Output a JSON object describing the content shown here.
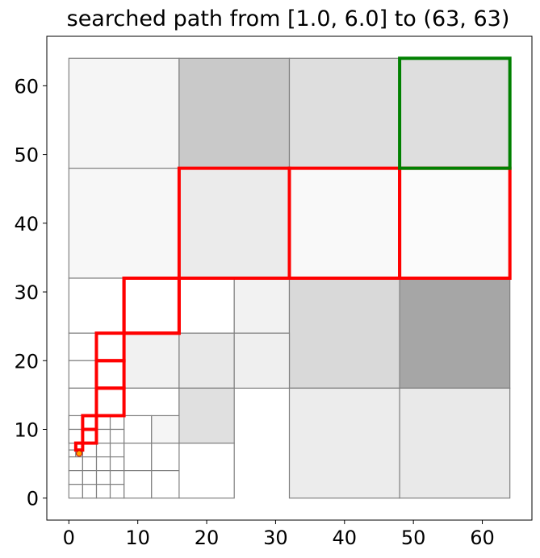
{
  "chart_data": {
    "type": "quadtree-path",
    "title": "searched path from [1.0, 6.0] to (63, 63)",
    "xlim": [
      -3.2,
      67.2
    ],
    "ylim": [
      -3.2,
      67.2
    ],
    "x_ticks": [
      0,
      10,
      20,
      30,
      40,
      50,
      60
    ],
    "y_ticks": [
      0,
      10,
      20,
      30,
      40,
      50,
      60
    ],
    "grid": false,
    "start_point": {
      "x": 1.5,
      "y": 6.5
    },
    "cells": [
      {
        "x0": 0,
        "y0": 48,
        "x1": 16,
        "y1": 64,
        "shade": "#f5f5f5"
      },
      {
        "x0": 16,
        "y0": 48,
        "x1": 32,
        "y1": 64,
        "shade": "#c9c9c9"
      },
      {
        "x0": 32,
        "y0": 48,
        "x1": 48,
        "y1": 64,
        "shade": "#dedede"
      },
      {
        "x0": 48,
        "y0": 48,
        "x1": 64,
        "y1": 64,
        "shade": "#dedede"
      },
      {
        "x0": 0,
        "y0": 32,
        "x1": 16,
        "y1": 48,
        "shade": "#f7f7f7"
      },
      {
        "x0": 16,
        "y0": 32,
        "x1": 32,
        "y1": 48,
        "shade": "#ebebeb"
      },
      {
        "x0": 32,
        "y0": 32,
        "x1": 48,
        "y1": 48,
        "shade": "#f9f9f9"
      },
      {
        "x0": 48,
        "y0": 32,
        "x1": 64,
        "y1": 48,
        "shade": "#fbfbfb"
      },
      {
        "x0": 0,
        "y0": 24,
        "x1": 8,
        "y1": 32,
        "shade": "#ffffff"
      },
      {
        "x0": 8,
        "y0": 24,
        "x1": 16,
        "y1": 32,
        "shade": "#ffffff"
      },
      {
        "x0": 16,
        "y0": 24,
        "x1": 24,
        "y1": 32,
        "shade": "#ffffff"
      },
      {
        "x0": 24,
        "y0": 24,
        "x1": 32,
        "y1": 32,
        "shade": "#f2f2f2"
      },
      {
        "x0": 32,
        "y0": 16,
        "x1": 48,
        "y1": 32,
        "shade": "#d9d9d9"
      },
      {
        "x0": 48,
        "y0": 16,
        "x1": 64,
        "y1": 32,
        "shade": "#a6a6a6"
      },
      {
        "x0": 0,
        "y0": 20,
        "x1": 4,
        "y1": 24,
        "shade": "#ffffff"
      },
      {
        "x0": 4,
        "y0": 20,
        "x1": 8,
        "y1": 24,
        "shade": "#ffffff"
      },
      {
        "x0": 0,
        "y0": 16,
        "x1": 4,
        "y1": 20,
        "shade": "#ffffff"
      },
      {
        "x0": 4,
        "y0": 16,
        "x1": 8,
        "y1": 20,
        "shade": "#ffffff"
      },
      {
        "x0": 8,
        "y0": 16,
        "x1": 16,
        "y1": 24,
        "shade": "#f1f1f1"
      },
      {
        "x0": 16,
        "y0": 16,
        "x1": 24,
        "y1": 24,
        "shade": "#e8e8e8"
      },
      {
        "x0": 24,
        "y0": 16,
        "x1": 32,
        "y1": 24,
        "shade": "#efefef"
      },
      {
        "x0": 0,
        "y0": 8,
        "x1": 8,
        "y1": 16,
        "shade": "#ffffff"
      },
      {
        "x0": 8,
        "y0": 8,
        "x1": 16,
        "y1": 16,
        "shade": "#ffffff"
      },
      {
        "x0": 16,
        "y0": 8,
        "x1": 24,
        "y1": 16,
        "shade": "#e0e0e0"
      },
      {
        "x0": 16,
        "y0": 0,
        "x1": 24,
        "y1": 8,
        "shade": "#ffffff"
      },
      {
        "x0": 32,
        "y0": 0,
        "x1": 48,
        "y1": 16,
        "shade": "#ececec"
      },
      {
        "x0": 48,
        "y0": 0,
        "x1": 64,
        "y1": 16,
        "shade": "#e9e9e9"
      },
      {
        "x0": 8,
        "y0": 8,
        "x1": 12,
        "y1": 12,
        "shade": "#ffffff"
      },
      {
        "x0": 12,
        "y0": 8,
        "x1": 16,
        "y1": 12,
        "shade": "#f5f5f5"
      },
      {
        "x0": 8,
        "y0": 4,
        "x1": 12,
        "y1": 8,
        "shade": "#ffffff"
      },
      {
        "x0": 12,
        "y0": 4,
        "x1": 16,
        "y1": 8,
        "shade": "#ffffff"
      },
      {
        "x0": 8,
        "y0": 0,
        "x1": 12,
        "y1": 4,
        "shade": "#ffffff"
      },
      {
        "x0": 12,
        "y0": 0,
        "x1": 16,
        "y1": 4,
        "shade": "#ffffff"
      },
      {
        "x0": 4,
        "y0": 10,
        "x1": 6,
        "y1": 12,
        "shade": "#ffffff"
      },
      {
        "x0": 6,
        "y0": 10,
        "x1": 8,
        "y1": 12,
        "shade": "#ffffff"
      },
      {
        "x0": 4,
        "y0": 8,
        "x1": 6,
        "y1": 10,
        "shade": "#ffffff"
      },
      {
        "x0": 6,
        "y0": 8,
        "x1": 8,
        "y1": 10,
        "shade": "#ffffff"
      },
      {
        "x0": 4,
        "y0": 6,
        "x1": 6,
        "y1": 8,
        "shade": "#ffffff"
      },
      {
        "x0": 6,
        "y0": 6,
        "x1": 8,
        "y1": 8,
        "shade": "#ffffff"
      },
      {
        "x0": 4,
        "y0": 4,
        "x1": 6,
        "y1": 6,
        "shade": "#ffffff"
      },
      {
        "x0": 6,
        "y0": 4,
        "x1": 8,
        "y1": 6,
        "shade": "#ffffff"
      },
      {
        "x0": 4,
        "y0": 2,
        "x1": 6,
        "y1": 4,
        "shade": "#ffffff"
      },
      {
        "x0": 6,
        "y0": 2,
        "x1": 8,
        "y1": 4,
        "shade": "#ffffff"
      },
      {
        "x0": 4,
        "y0": 0,
        "x1": 6,
        "y1": 2,
        "shade": "#ffffff"
      },
      {
        "x0": 6,
        "y0": 0,
        "x1": 8,
        "y1": 2,
        "shade": "#ffffff"
      },
      {
        "x0": 0,
        "y0": 10,
        "x1": 2,
        "y1": 12,
        "shade": "#ffffff"
      },
      {
        "x0": 2,
        "y0": 10,
        "x1": 4,
        "y1": 12,
        "shade": "#ffffff"
      },
      {
        "x0": 0,
        "y0": 8,
        "x1": 2,
        "y1": 10,
        "shade": "#ffffff"
      },
      {
        "x0": 2,
        "y0": 8,
        "x1": 4,
        "y1": 10,
        "shade": "#ffffff"
      },
      {
        "x0": 0,
        "y0": 7,
        "x1": 1,
        "y1": 8,
        "shade": "#ffffff"
      },
      {
        "x0": 1,
        "y0": 7,
        "x1": 2,
        "y1": 8,
        "shade": "#ffffff"
      },
      {
        "x0": 0,
        "y0": 6,
        "x1": 1,
        "y1": 7,
        "shade": "#ffffff"
      },
      {
        "x0": 1,
        "y0": 6,
        "x1": 2,
        "y1": 7,
        "shade": "#ffffff"
      },
      {
        "x0": 2,
        "y0": 6,
        "x1": 4,
        "y1": 8,
        "shade": "#ffffff"
      },
      {
        "x0": 0,
        "y0": 4,
        "x1": 2,
        "y1": 6,
        "shade": "#ffffff"
      },
      {
        "x0": 2,
        "y0": 4,
        "x1": 4,
        "y1": 6,
        "shade": "#ffffff"
      },
      {
        "x0": 0,
        "y0": 2,
        "x1": 2,
        "y1": 4,
        "shade": "#ffffff"
      },
      {
        "x0": 2,
        "y0": 2,
        "x1": 4,
        "y1": 4,
        "shade": "#ffffff"
      },
      {
        "x0": 0,
        "y0": 0,
        "x1": 2,
        "y1": 2,
        "shade": "#ffffff"
      },
      {
        "x0": 2,
        "y0": 0,
        "x1": 4,
        "y1": 2,
        "shade": "#ffffff"
      }
    ],
    "path_cells": [
      {
        "x0": 1,
        "y0": 7,
        "x1": 2,
        "y1": 8
      },
      {
        "x0": 2,
        "y0": 8,
        "x1": 4,
        "y1": 10
      },
      {
        "x0": 2,
        "y0": 10,
        "x1": 4,
        "y1": 12
      },
      {
        "x0": 4,
        "y0": 12,
        "x1": 8,
        "y1": 16
      },
      {
        "x0": 4,
        "y0": 16,
        "x1": 8,
        "y1": 20
      },
      {
        "x0": 4,
        "y0": 20,
        "x1": 8,
        "y1": 24
      },
      {
        "x0": 8,
        "y0": 24,
        "x1": 16,
        "y1": 32
      },
      {
        "x0": 8,
        "y0": 24,
        "x1": 16,
        "y1": 32
      },
      {
        "x0": 16,
        "y0": 32,
        "x1": 32,
        "y1": 48
      },
      {
        "x0": 32,
        "y0": 32,
        "x1": 48,
        "y1": 48
      },
      {
        "x0": 48,
        "y0": 32,
        "x1": 64,
        "y1": 48
      }
    ],
    "goal_cell": {
      "x0": 48,
      "y0": 48,
      "x1": 64,
      "y1": 64
    },
    "colors": {
      "cell_edge": "#808080",
      "path": "#ff0000",
      "goal": "#008000",
      "start_marker_fill": "#ffa500",
      "start_marker_edge": "#d00000",
      "axes": "#000000"
    }
  }
}
